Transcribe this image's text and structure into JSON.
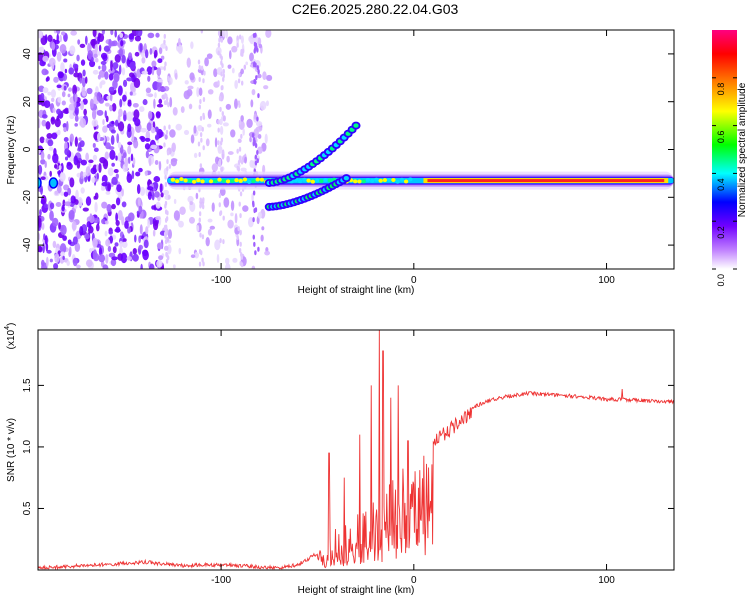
{
  "title": "C2E6.2025.280.22.04.G03",
  "chart_data": [
    {
      "type": "heatmap",
      "xlabel": "Height of straight line (km)",
      "ylabel": "Frequency (Hz)",
      "xlim": [
        -195,
        135
      ],
      "ylim": [
        -50,
        50
      ],
      "xticks": [
        -100,
        0,
        100
      ],
      "yticks": [
        -40,
        -20,
        0,
        20,
        40
      ],
      "colorbar": {
        "label": "Normalized spectral amplitude",
        "range": [
          0,
          1
        ],
        "ticks": [
          "0.0",
          "0.2",
          "0.4",
          "0.6",
          "0.8"
        ],
        "colors": [
          "#ffffff",
          "#c080ff",
          "#7000ff",
          "#0000ff",
          "#00ffff",
          "#00ff00",
          "#ffff00",
          "#ff8000",
          "#ff0000",
          "#ff0080"
        ]
      },
      "features": [
        {
          "name": "main-trace",
          "x": [
            -128,
            135
          ],
          "y": -13
        },
        {
          "name": "upper-branch",
          "x": [
            -75,
            -30
          ],
          "y": [
            -14,
            10
          ]
        },
        {
          "name": "lower-branch",
          "x": [
            -75,
            -35
          ],
          "y": [
            -24,
            -12
          ]
        },
        {
          "name": "noise-region",
          "x": [
            -195,
            -80
          ],
          "y": [
            -50,
            50
          ]
        }
      ]
    },
    {
      "type": "line",
      "xlabel": "Height of straight line (km)",
      "ylabel": "SNR (10 * v/v)",
      "yscale_label": "(x10",
      "yscale_exp": "4",
      "yscale_close": ")",
      "xlim": [
        -195,
        135
      ],
      "ylim": [
        0,
        1.95
      ],
      "xticks": [
        -100,
        0,
        100
      ],
      "yticks": [
        0.5,
        1.0,
        1.5
      ],
      "ytick_labels": [
        "0.5",
        "1.0",
        "1.5"
      ],
      "color": "#ee3333",
      "envelope": {
        "x": [
          -195,
          -160,
          -140,
          -120,
          -100,
          -80,
          -70,
          -60,
          -50,
          -45,
          -40,
          -35,
          -30,
          -25,
          -20,
          -17,
          -15,
          -10,
          -5,
          0,
          5,
          10,
          20,
          30,
          40,
          50,
          60,
          70,
          80,
          90,
          100,
          110,
          120,
          135
        ],
        "y": [
          0.03,
          0.06,
          0.08,
          0.05,
          0.06,
          0.04,
          0.03,
          0.06,
          0.15,
          0.3,
          0.35,
          0.38,
          0.45,
          0.5,
          0.58,
          0.7,
          0.75,
          0.78,
          0.85,
          0.9,
          1.0,
          1.1,
          1.22,
          1.33,
          1.4,
          1.43,
          1.45,
          1.44,
          1.43,
          1.42,
          1.4,
          1.4,
          1.39,
          1.38
        ]
      },
      "spikes": [
        {
          "x": -44,
          "y": 0.95
        },
        {
          "x": -36,
          "y": 0.75
        },
        {
          "x": -28,
          "y": 1.1
        },
        {
          "x": -22,
          "y": 1.5
        },
        {
          "x": -18,
          "y": 1.95
        },
        {
          "x": -16,
          "y": 1.78
        },
        {
          "x": -12,
          "y": 1.4
        },
        {
          "x": -8,
          "y": 1.5
        },
        {
          "x": -3,
          "y": 1.05
        },
        {
          "x": 108,
          "y": 1.47
        }
      ]
    }
  ]
}
